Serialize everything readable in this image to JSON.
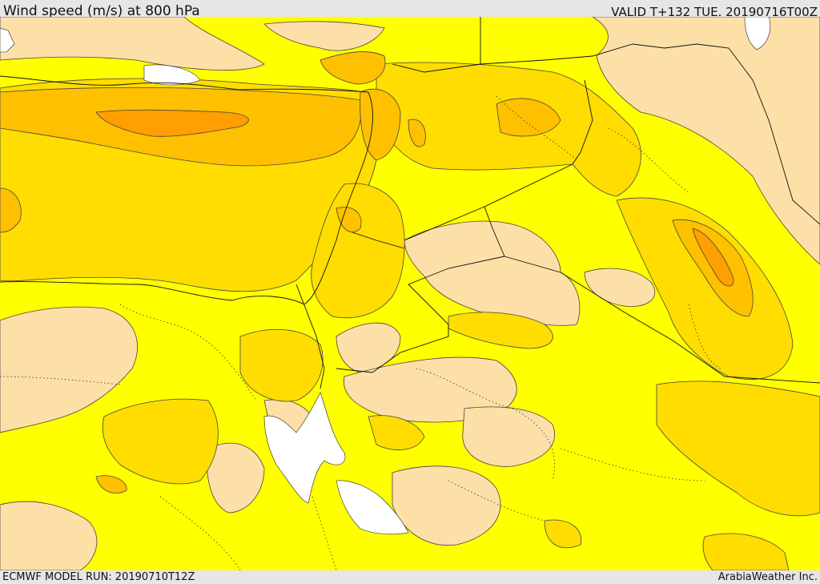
{
  "header": {
    "title": "Wind speed (m/s) at 800 hPa",
    "valid": "VALID T+132 TUE. 20190716T00Z"
  },
  "footer": {
    "model_run": "ECMWF MODEL RUN: 20190710T12Z",
    "credit": "ArabiaWeather Inc."
  },
  "map": {
    "fill_colors": {
      "lightest": "#fde0a8",
      "yellow": "#ffff00",
      "gold": "#ffdd00",
      "amber": "#ffc000",
      "orange": "#ff9f00",
      "water": "#ffffff",
      "contour": "#444444",
      "border": "#111111"
    }
  }
}
